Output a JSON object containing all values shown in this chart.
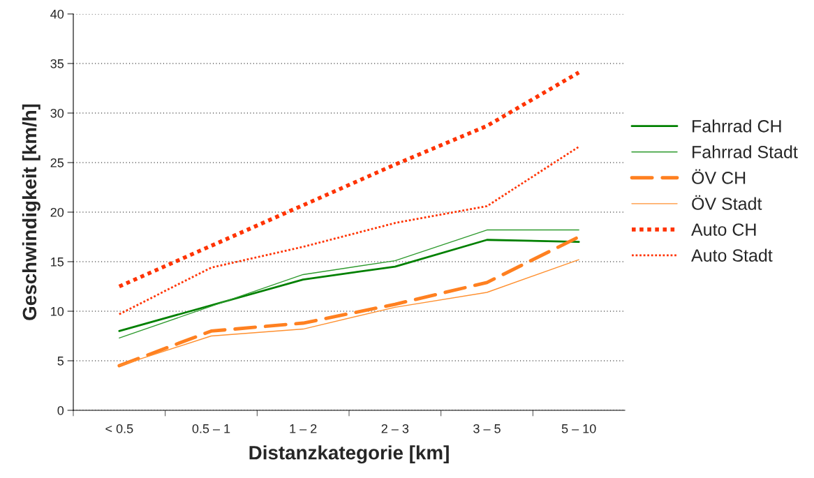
{
  "chart_data": {
    "type": "line",
    "xlabel": "Distanzkategorie [km]",
    "ylabel": "Geschwindigkeit [km/h]",
    "categories": [
      "< 0.5",
      "0.5 – 1",
      "1 – 2",
      "2 – 3",
      "3 – 5",
      "5 – 10"
    ],
    "ylim": [
      0,
      40
    ],
    "yticks": [
      0,
      5,
      10,
      15,
      20,
      25,
      30,
      35,
      40
    ],
    "grid": "y",
    "legend": "right",
    "marker": "none",
    "series": [
      {
        "name": "Fahrrad CH",
        "color": "#008000",
        "line_style": "solid",
        "values": [
          8.0,
          10.6,
          13.2,
          14.5,
          17.2,
          17.0
        ]
      },
      {
        "name": "Fahrrad Stadt",
        "color": "#2e9a2e",
        "line_style": "solid",
        "values": [
          7.3,
          10.5,
          13.7,
          15.1,
          18.2,
          18.2
        ]
      },
      {
        "name": "ÖV CH",
        "color": "#ff8020",
        "line_style": "dashed",
        "values": [
          4.5,
          8.0,
          8.8,
          10.7,
          12.9,
          17.5
        ]
      },
      {
        "name": "ÖV Stadt",
        "color": "#ff9030",
        "line_style": "solid",
        "values": [
          4.5,
          7.5,
          8.2,
          10.4,
          11.9,
          15.2
        ]
      },
      {
        "name": "Auto CH",
        "color": "#ff3300",
        "line_style": "dotted",
        "values": [
          12.5,
          16.6,
          20.7,
          24.8,
          28.7,
          34.1
        ]
      },
      {
        "name": "Auto Stadt",
        "color": "#ff3300",
        "line_style": "dotted",
        "values": [
          9.7,
          14.4,
          16.5,
          18.9,
          20.6,
          26.6
        ]
      }
    ]
  }
}
